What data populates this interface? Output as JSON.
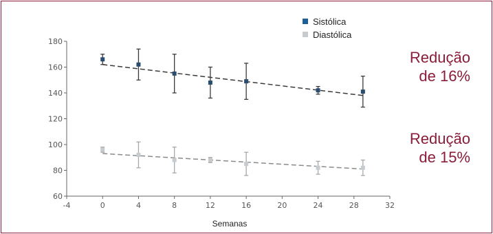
{
  "chart_data": {
    "type": "line",
    "xlabel": "Semanas",
    "ylabel": "",
    "xlim": [
      -4,
      32
    ],
    "ylim": [
      60,
      180
    ],
    "x_ticks": [
      -4,
      0,
      4,
      8,
      12,
      16,
      20,
      24,
      28,
      32
    ],
    "y_ticks": [
      60,
      80,
      100,
      120,
      140,
      160,
      180
    ],
    "grid": false,
    "legend_position": "top-right",
    "series": [
      {
        "name": "Sistólica",
        "color": "#1f5f95",
        "trend": [
          [
            0,
            162
          ],
          [
            29,
            138
          ]
        ],
        "points": [
          {
            "x": 0,
            "y": 166,
            "err": 4
          },
          {
            "x": 4,
            "y": 162,
            "err": 12
          },
          {
            "x": 8,
            "y": 155,
            "err": 15
          },
          {
            "x": 12,
            "y": 148,
            "err": 12
          },
          {
            "x": 16,
            "y": 149,
            "err": 14
          },
          {
            "x": 24,
            "y": 142,
            "err": 3
          },
          {
            "x": 29,
            "y": 141,
            "err": 12
          }
        ]
      },
      {
        "name": "Diastólica",
        "color": "#c6cbd0",
        "trend": [
          [
            0,
            93
          ],
          [
            29,
            81
          ]
        ],
        "points": [
          {
            "x": 0,
            "y": 96,
            "err": 2
          },
          {
            "x": 4,
            "y": 92,
            "err": 10
          },
          {
            "x": 8,
            "y": 88,
            "err": 10
          },
          {
            "x": 12,
            "y": 88,
            "err": 2
          },
          {
            "x": 16,
            "y": 85,
            "err": 9
          },
          {
            "x": 24,
            "y": 82,
            "err": 5
          },
          {
            "x": 29,
            "y": 82,
            "err": 6
          }
        ]
      }
    ],
    "annotations": [
      {
        "line1": "Redução",
        "line2": "de 16%"
      },
      {
        "line1": "Redução",
        "line2": "de 15%"
      }
    ]
  }
}
